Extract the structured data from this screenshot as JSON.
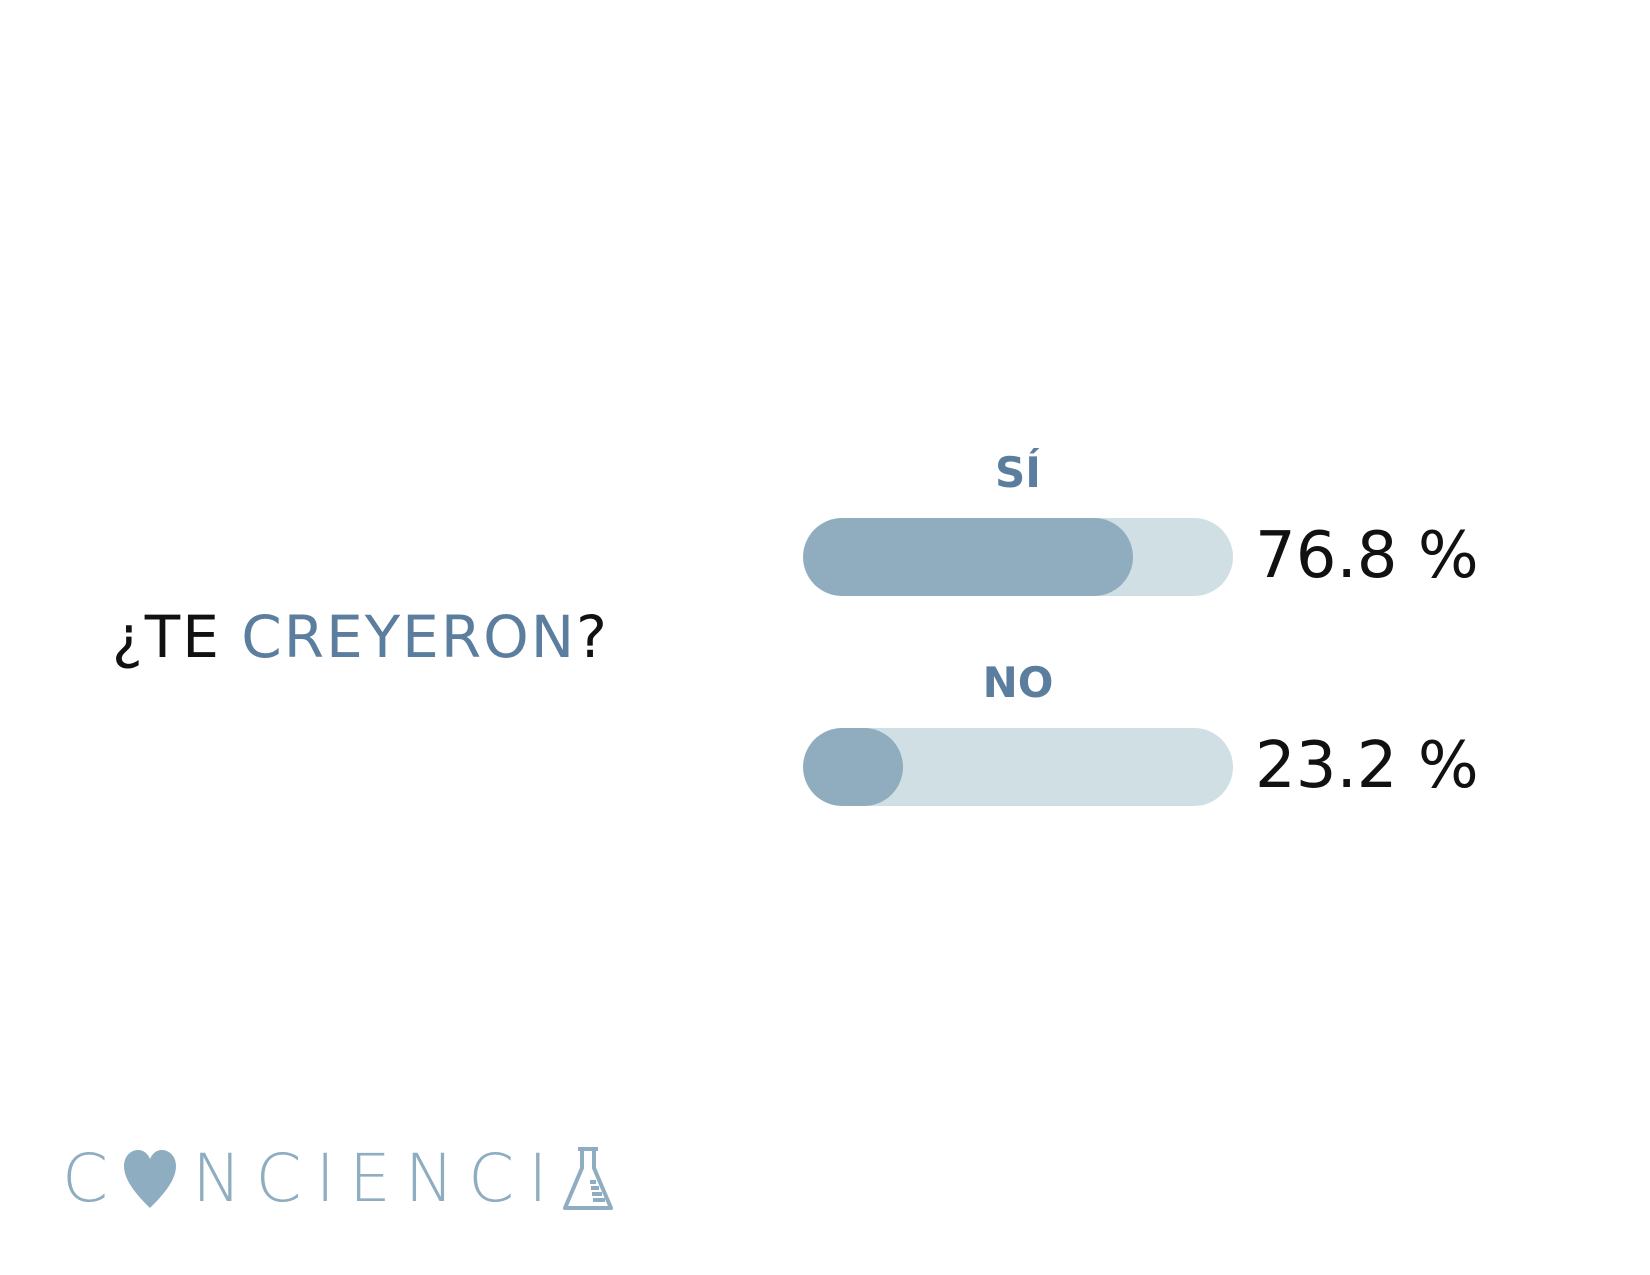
{
  "question": {
    "prefix": "¿TE ",
    "highlight": "CREYERON",
    "suffix": "?"
  },
  "colors": {
    "track": "#d0dfe4",
    "fill": "#8fadbf",
    "accent": "#5c7e9e",
    "logo": "#8eadc1"
  },
  "chart_data": {
    "type": "bar",
    "categories": [
      "SÍ",
      "NO"
    ],
    "values": [
      76.8,
      23.2
    ],
    "value_labels": [
      "76.8 %",
      "23.2 %"
    ],
    "ylim": [
      0,
      100
    ]
  },
  "logo": {
    "part1": "C",
    "part2": "NCIENCI",
    "icons": [
      "heart-icon",
      "flask-icon"
    ]
  }
}
